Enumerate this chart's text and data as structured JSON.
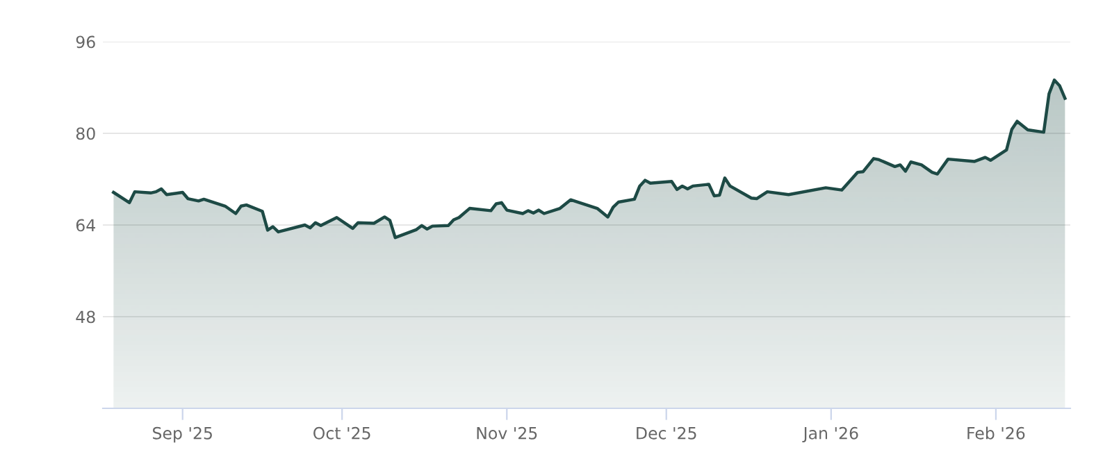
{
  "chart_data": {
    "type": "area",
    "x": [
      "2025-08-19",
      "2025-08-22",
      "2025-08-23",
      "2025-08-26",
      "2025-08-27",
      "2025-08-28",
      "2025-08-29",
      "2025-09-01",
      "2025-09-02",
      "2025-09-04",
      "2025-09-05",
      "2025-09-09",
      "2025-09-11",
      "2025-09-12",
      "2025-09-13",
      "2025-09-16",
      "2025-09-17",
      "2025-09-18",
      "2025-09-19",
      "2025-09-24",
      "2025-09-25",
      "2025-09-26",
      "2025-09-27",
      "2025-09-30",
      "2025-10-03",
      "2025-10-04",
      "2025-10-07",
      "2025-10-09",
      "2025-10-10",
      "2025-10-11",
      "2025-10-15",
      "2025-10-16",
      "2025-10-17",
      "2025-10-18",
      "2025-10-21",
      "2025-10-22",
      "2025-10-23",
      "2025-10-25",
      "2025-10-29",
      "2025-10-30",
      "2025-10-31",
      "2025-11-01",
      "2025-11-04",
      "2025-11-05",
      "2025-11-06",
      "2025-11-07",
      "2025-11-08",
      "2025-11-11",
      "2025-11-13",
      "2025-11-18",
      "2025-11-20",
      "2025-11-21",
      "2025-11-22",
      "2025-11-25",
      "2025-11-26",
      "2025-11-27",
      "2025-11-28",
      "2025-12-02",
      "2025-12-03",
      "2025-12-04",
      "2025-12-05",
      "2025-12-06",
      "2025-12-09",
      "2025-12-10",
      "2025-12-11",
      "2025-12-12",
      "2025-12-13",
      "2025-12-17",
      "2025-12-18",
      "2025-12-20",
      "2025-12-24",
      "2025-12-31",
      "2026-01-03",
      "2026-01-06",
      "2026-01-07",
      "2026-01-09",
      "2026-01-10",
      "2026-01-13",
      "2026-01-14",
      "2026-01-15",
      "2026-01-16",
      "2026-01-18",
      "2026-01-20",
      "2026-01-21",
      "2026-01-23",
      "2026-01-28",
      "2026-01-30",
      "2026-01-31",
      "2026-02-03",
      "2026-02-04",
      "2026-02-05",
      "2026-02-07",
      "2026-02-10",
      "2026-02-11",
      "2026-02-12",
      "2026-02-13",
      "2026-02-14"
    ],
    "series": [
      {
        "color": "#1d4a45",
        "values": [
          69.7,
          67.9,
          69.8,
          69.6,
          69.8,
          70.3,
          69.3,
          69.7,
          68.6,
          68.2,
          68.5,
          67.3,
          66.0,
          67.3,
          67.5,
          66.4,
          63.1,
          63.7,
          62.8,
          64.0,
          63.5,
          64.4,
          63.9,
          65.3,
          63.4,
          64.4,
          64.3,
          65.4,
          64.8,
          61.8,
          63.2,
          63.9,
          63.3,
          63.8,
          63.9,
          64.9,
          65.3,
          66.9,
          66.5,
          67.7,
          67.9,
          66.6,
          66.0,
          66.5,
          66.1,
          66.6,
          66.0,
          66.9,
          68.4,
          66.9,
          65.4,
          67.1,
          68.0,
          68.5,
          70.8,
          71.8,
          71.3,
          71.6,
          70.2,
          70.8,
          70.3,
          70.8,
          71.1,
          69.1,
          69.2,
          72.2,
          70.8,
          68.7,
          68.6,
          69.8,
          69.3,
          70.5,
          70.1,
          73.2,
          73.3,
          75.6,
          75.4,
          74.2,
          74.5,
          73.4,
          75.0,
          74.5,
          73.2,
          72.9,
          75.5,
          75.1,
          75.8,
          75.3,
          77.1,
          80.7,
          82.1,
          80.6,
          80.2,
          86.9,
          89.3,
          88.3,
          86.1
        ]
      }
    ],
    "xlim": [
      "2025-08-17",
      "2026-02-15"
    ],
    "xticks": [
      {
        "value": "2025-09-01",
        "label": "Sep '25"
      },
      {
        "value": "2025-10-01",
        "label": "Oct '25"
      },
      {
        "value": "2025-11-01",
        "label": "Nov '25"
      },
      {
        "value": "2025-12-01",
        "label": "Dec '25"
      },
      {
        "value": "2026-01-01",
        "label": "Jan '26"
      },
      {
        "value": "2026-02-01",
        "label": "Feb '26"
      }
    ],
    "ylim": [
      32,
      96
    ],
    "yticks": [
      48,
      64,
      80,
      96
    ],
    "grid": "y",
    "legend": false
  }
}
